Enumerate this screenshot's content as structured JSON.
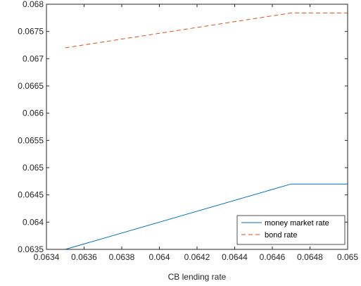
{
  "chart_data": {
    "type": "line",
    "title": "",
    "xlabel": "CB lending rate",
    "ylabel": "",
    "xlim": [
      0.0634,
      0.065
    ],
    "ylim": [
      0.0635,
      0.068
    ],
    "x_ticks": [
      0.0634,
      0.0636,
      0.0638,
      0.064,
      0.0642,
      0.0644,
      0.0646,
      0.0648,
      0.065
    ],
    "x_tick_labels": [
      "0.0634",
      "0.0636",
      "0.0638",
      "0.064",
      "0.0642",
      "0.0644",
      "0.0646",
      "0.0648",
      "0.065"
    ],
    "y_ticks": [
      0.0635,
      0.064,
      0.0645,
      0.065,
      0.0655,
      0.066,
      0.0665,
      0.067,
      0.0675,
      0.068
    ],
    "y_tick_labels": [
      "0.0635",
      "0.064",
      "0.0645",
      "0.065",
      "0.0655",
      "0.066",
      "0.0665",
      "0.067",
      "0.0675",
      "0.068"
    ],
    "grid": false,
    "legend_position": "bottom-right",
    "series": [
      {
        "name": "money market rate",
        "color": "#0072BD",
        "dash": "solid",
        "x": [
          0.0635,
          0.0647,
          0.065
        ],
        "y": [
          0.0635,
          0.0647,
          0.0647
        ]
      },
      {
        "name": "bond rate",
        "color": "#D95319",
        "dash": "dashed",
        "x": [
          0.0635,
          0.0647,
          0.065
        ],
        "y": [
          0.0672,
          0.06784,
          0.06784
        ]
      }
    ]
  }
}
